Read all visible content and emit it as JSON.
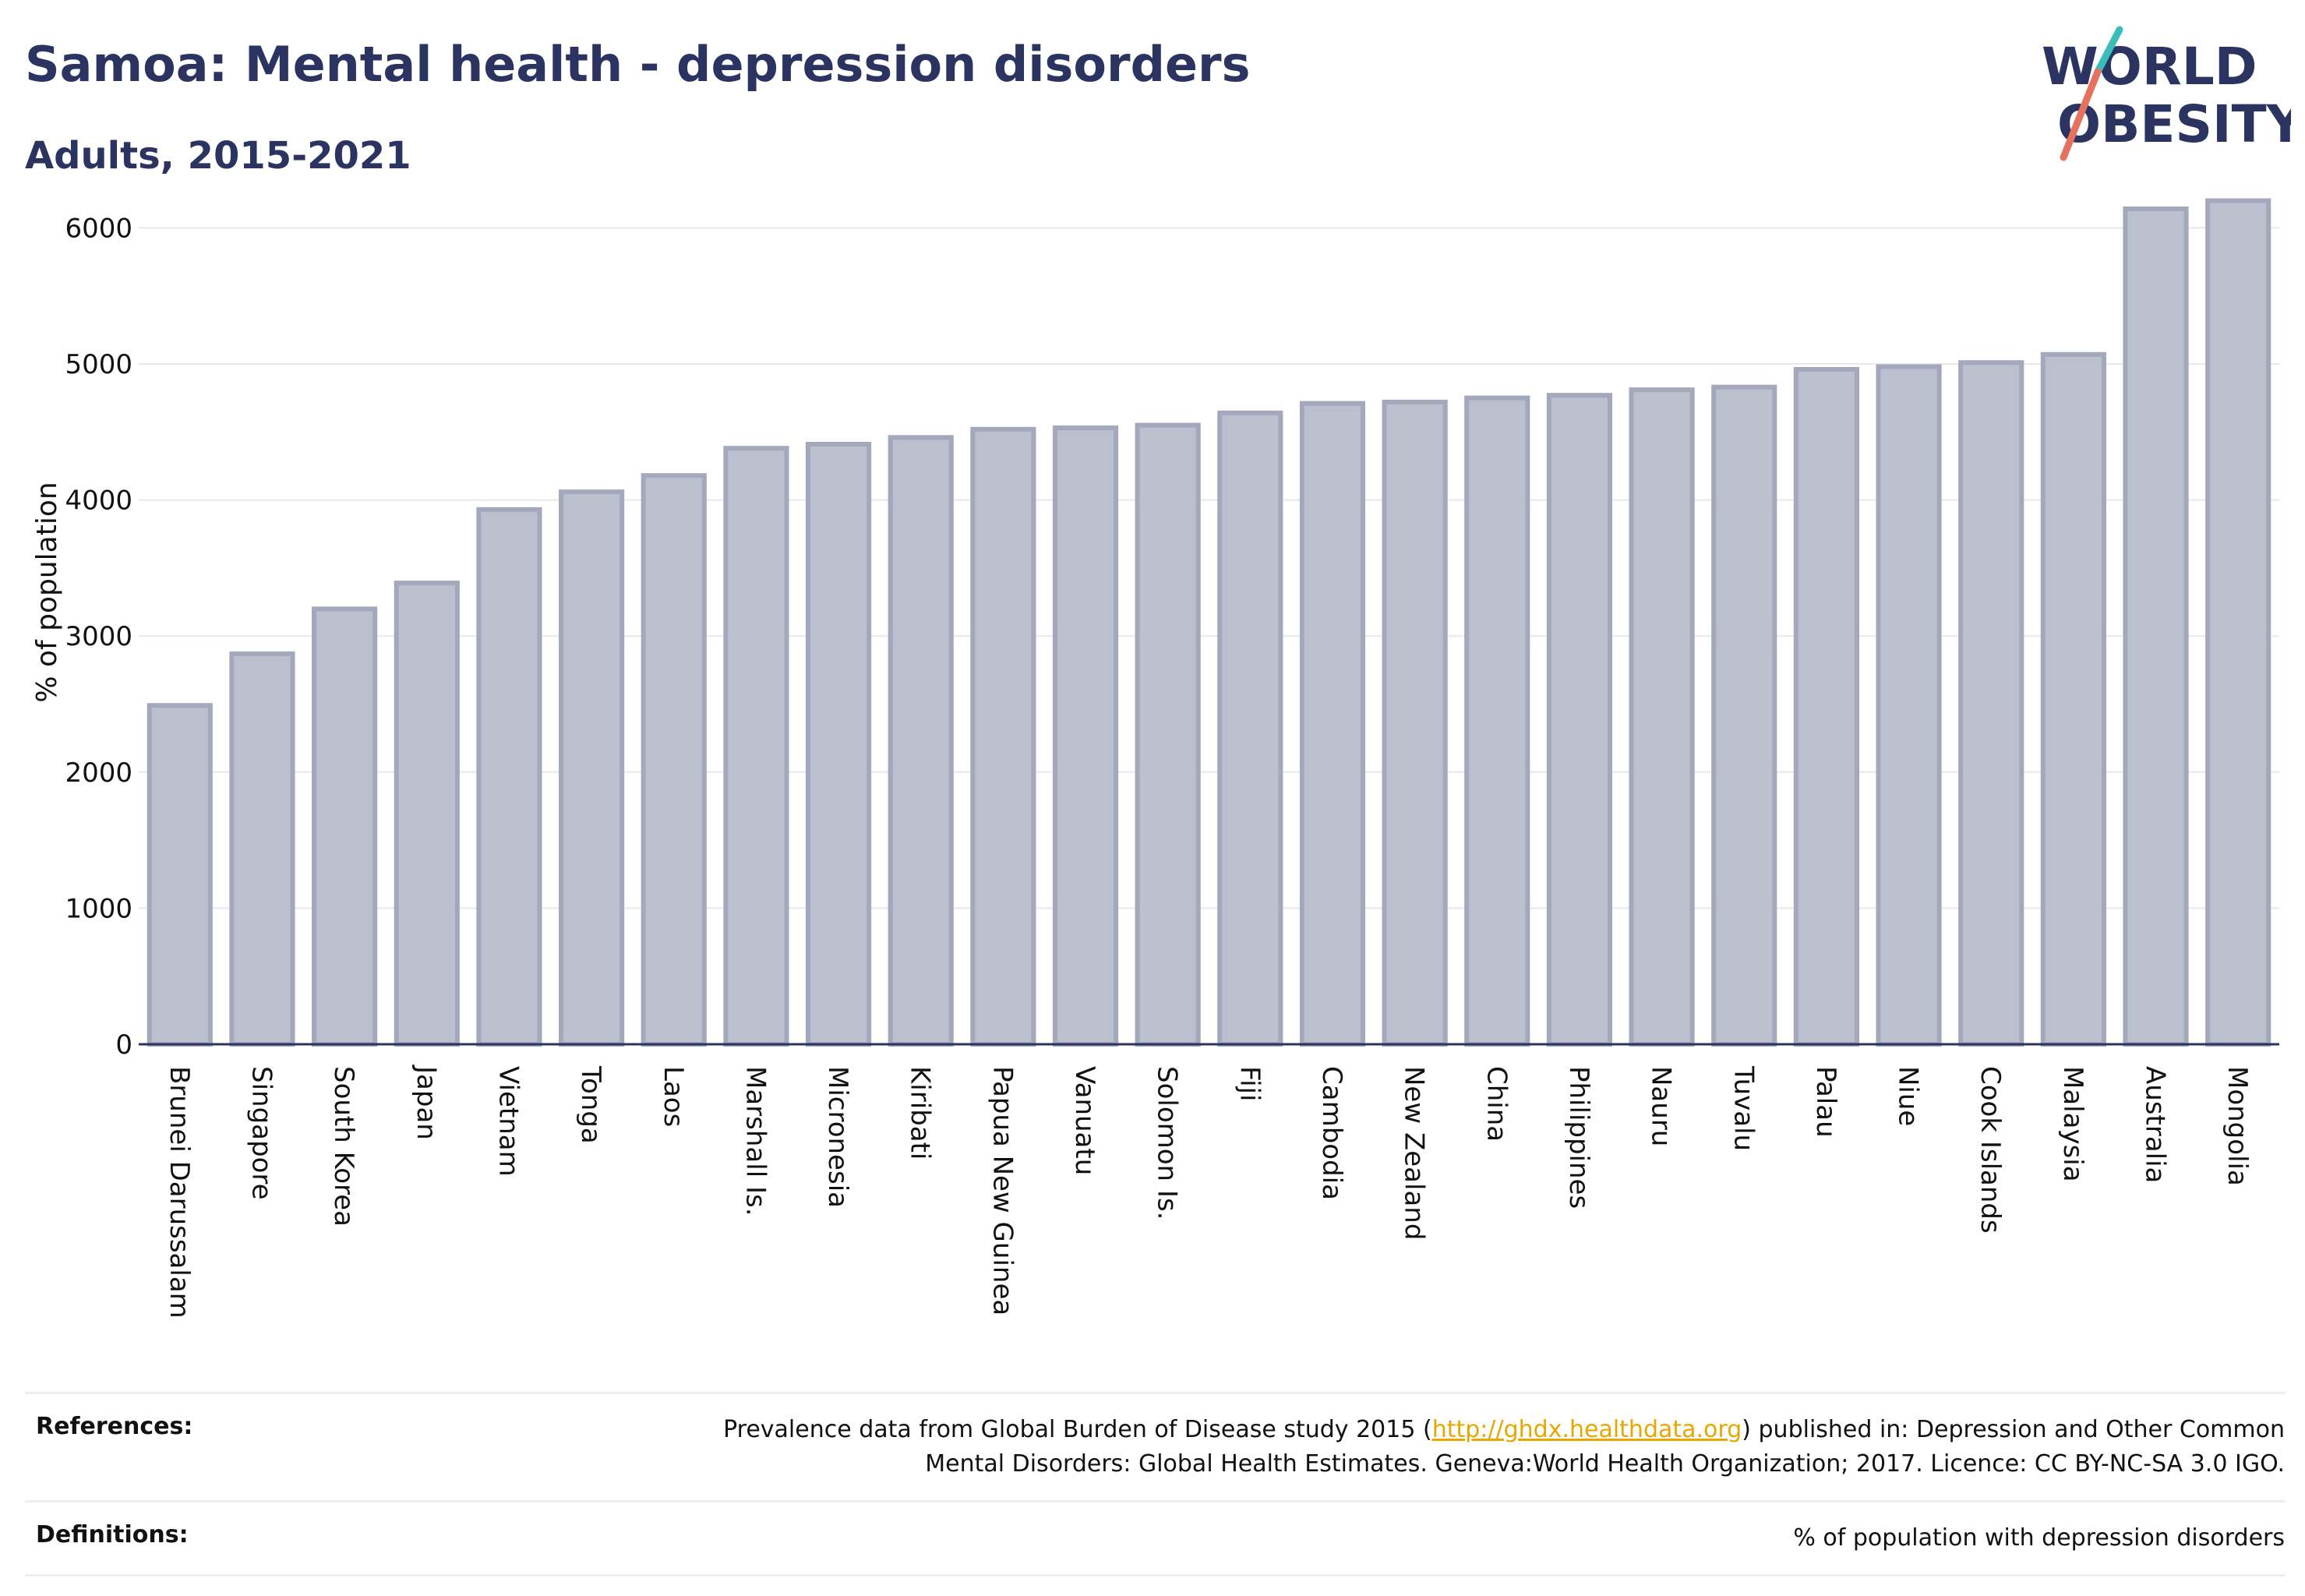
{
  "header": {
    "title": "Samoa: Mental health - depression disorders",
    "subtitle": "Adults, 2015-2021"
  },
  "logo": {
    "line1": "WORLD",
    "line2": "OBESITY"
  },
  "colors": {
    "bar_fill": "#bcbfcd",
    "bar_stroke": "#a3a8bd",
    "text": "#2b3360",
    "grid": "#e6e8ee",
    "link": "#e6a700"
  },
  "chart_data": {
    "type": "bar",
    "ylabel": "% of population",
    "ylim": [
      0,
      6300
    ],
    "yticks": [
      0,
      1000,
      2000,
      3000,
      4000,
      5000,
      6000
    ],
    "grid": true,
    "categories": [
      "Brunei Darussalam",
      "Singapore",
      "South Korea",
      "Japan",
      "Vietnam",
      "Tonga",
      "Laos",
      "Marshall Is.",
      "Micronesia",
      "Kiribati",
      "Papua New Guinea",
      "Vanuatu",
      "Solomon Is.",
      "Fiji",
      "Cambodia",
      "New Zealand",
      "China",
      "Philippines",
      "Nauru",
      "Tuvalu",
      "Palau",
      "Niue",
      "Cook Islands",
      "Malaysia",
      "Australia",
      "Mongolia"
    ],
    "values": [
      2490,
      2870,
      3200,
      3390,
      3930,
      4060,
      4180,
      4380,
      4410,
      4460,
      4520,
      4530,
      4550,
      4640,
      4710,
      4720,
      4750,
      4770,
      4810,
      4830,
      4960,
      4980,
      5010,
      5070,
      6140,
      6200
    ]
  },
  "footer": {
    "references_label": "References:",
    "references_pre": "Prevalence data from Global Burden of Disease study 2015 (",
    "references_link": "http://ghdx.healthdata.org",
    "references_post": ") published in: Depression and Other Common",
    "references_line2": "Mental Disorders: Global Health Estimates. Geneva:World Health Organization; 2017. Licence: CC BY-NC-SA 3.0 IGO.",
    "definitions_label": "Definitions:",
    "definitions_text": "% of population with depression disorders"
  }
}
